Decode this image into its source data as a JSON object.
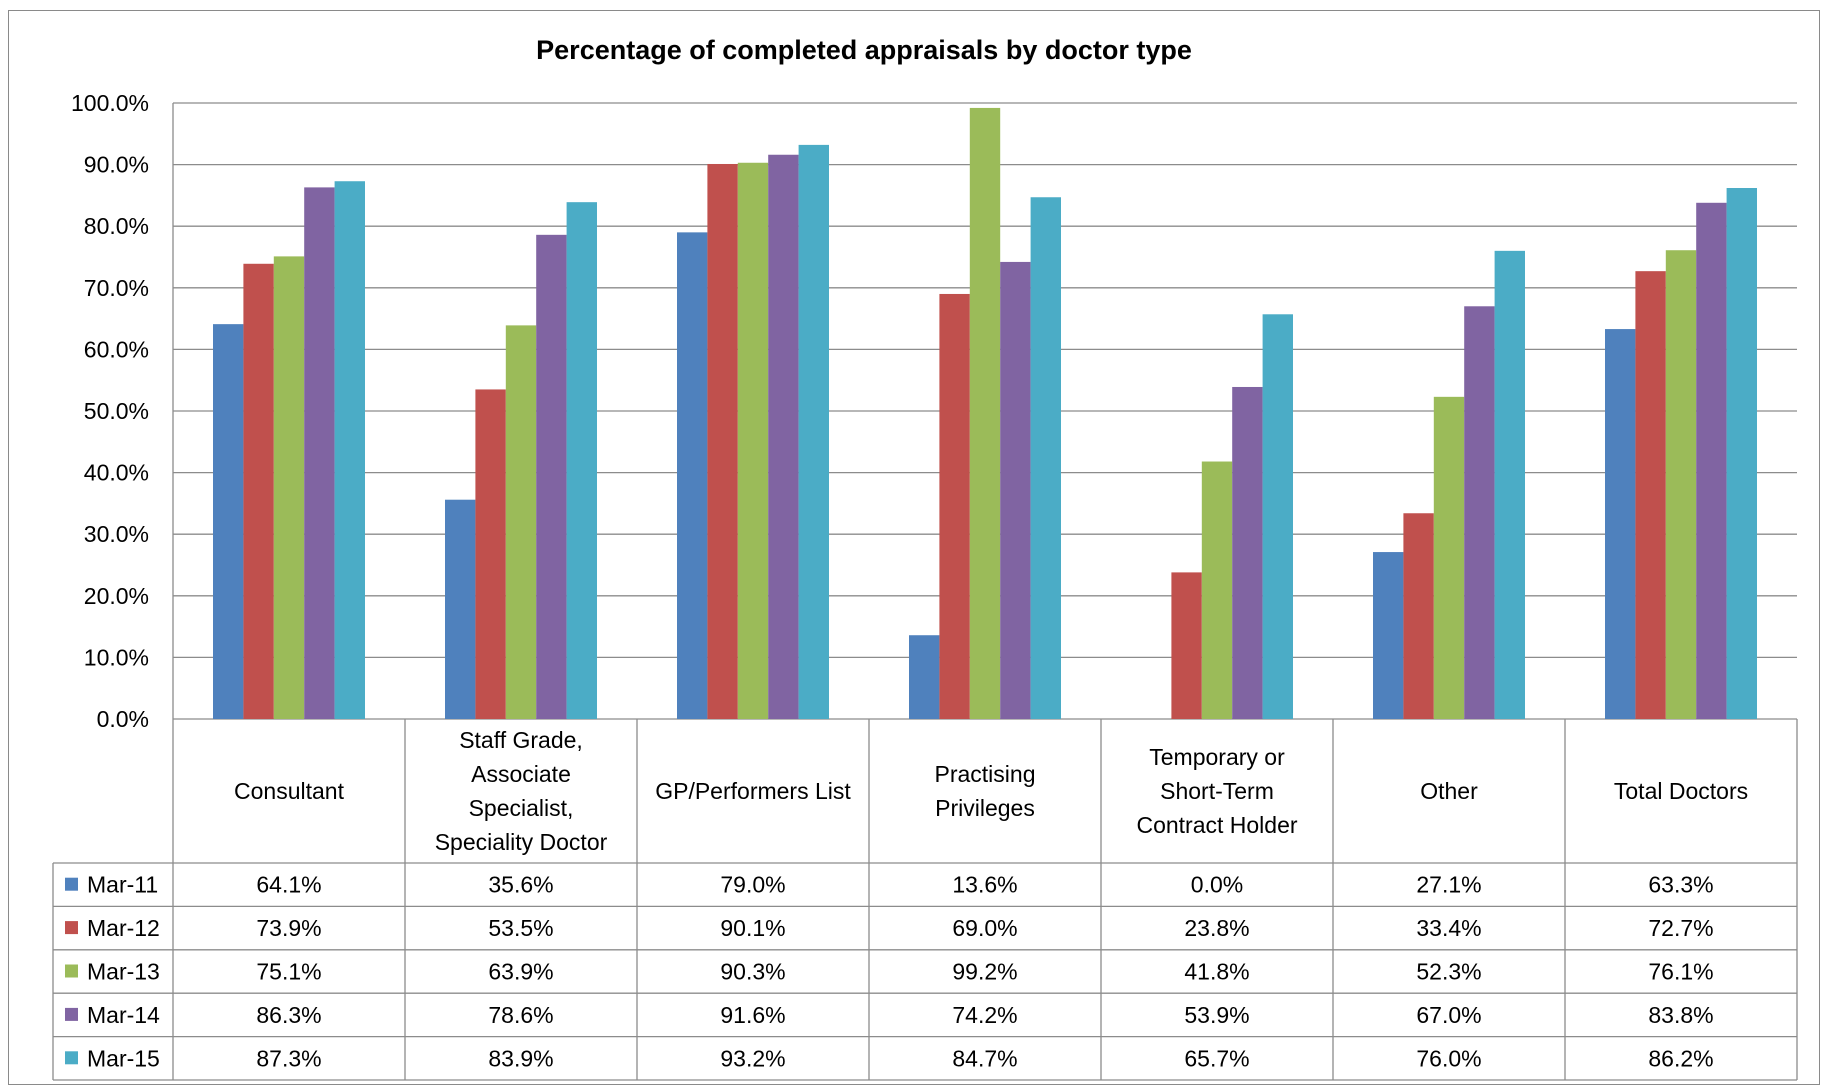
{
  "chart_data": {
    "type": "bar",
    "title": "Percentage of completed appraisals by doctor type",
    "xlabel": "",
    "ylabel": "",
    "ylim": [
      0,
      100
    ],
    "ytick_step": 10,
    "ytick_labels": [
      "0.0%",
      "10.0%",
      "20.0%",
      "30.0%",
      "40.0%",
      "50.0%",
      "60.0%",
      "70.0%",
      "80.0%",
      "90.0%",
      "100.0%"
    ],
    "grid": true,
    "legend_position": "data-table-left",
    "categories": [
      "Consultant",
      "Staff Grade, Associate Specialist, Speciality Doctor",
      "GP/Performers List",
      "Practising Privileges",
      "Temporary or Short-Term Contract Holder",
      "Other",
      "Total Doctors"
    ],
    "category_lines": [
      [
        "Consultant"
      ],
      [
        "Staff Grade,",
        "Associate",
        "Specialist,",
        "Speciality Doctor"
      ],
      [
        "GP/Performers List"
      ],
      [
        "Practising",
        "Privileges"
      ],
      [
        "Temporary or",
        "Short-Term",
        "Contract Holder"
      ],
      [
        "Other"
      ],
      [
        "Total Doctors"
      ]
    ],
    "series": [
      {
        "name": "Mar-11",
        "color": "#4F81BD",
        "values": [
          64.1,
          35.6,
          79.0,
          13.6,
          0.0,
          27.1,
          63.3
        ],
        "labels": [
          "64.1%",
          "35.6%",
          "79.0%",
          "13.6%",
          "0.0%",
          "27.1%",
          "63.3%"
        ]
      },
      {
        "name": "Mar-12",
        "color": "#C0504D",
        "values": [
          73.9,
          53.5,
          90.1,
          69.0,
          23.8,
          33.4,
          72.7
        ],
        "labels": [
          "73.9%",
          "53.5%",
          "90.1%",
          "69.0%",
          "23.8%",
          "33.4%",
          "72.7%"
        ]
      },
      {
        "name": "Mar-13",
        "color": "#9BBB59",
        "values": [
          75.1,
          63.9,
          90.3,
          99.2,
          41.8,
          52.3,
          76.1
        ],
        "labels": [
          "75.1%",
          "63.9%",
          "90.3%",
          "99.2%",
          "41.8%",
          "52.3%",
          "76.1%"
        ]
      },
      {
        "name": "Mar-14",
        "color": "#8064A2",
        "values": [
          86.3,
          78.6,
          91.6,
          74.2,
          53.9,
          67.0,
          83.8
        ],
        "labels": [
          "86.3%",
          "78.6%",
          "91.6%",
          "74.2%",
          "53.9%",
          "67.0%",
          "83.8%"
        ]
      },
      {
        "name": "Mar-15",
        "color": "#4BACC6",
        "values": [
          87.3,
          83.9,
          93.2,
          84.7,
          65.7,
          76.0,
          86.2
        ],
        "labels": [
          "87.3%",
          "83.9%",
          "93.2%",
          "84.7%",
          "65.7%",
          "76.0%",
          "86.2%"
        ]
      }
    ]
  }
}
